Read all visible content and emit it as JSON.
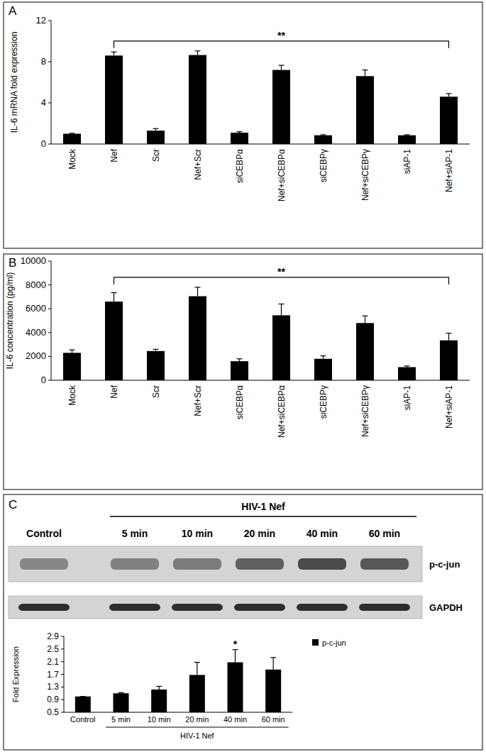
{
  "chart_data": [
    {
      "type": "bar",
      "panel": "A",
      "y_label": "IL-6 mRNA fold expression",
      "categories": [
        "Mock",
        "Nef",
        "Scr",
        "Nef+Scr",
        "siCEBPα",
        "Nef+siCEBPα",
        "siCEBPγ",
        "Nef+siCEBPγ",
        "siAP-1",
        "Nef+siAP-1"
      ],
      "values": [
        1.0,
        8.6,
        1.3,
        8.65,
        1.1,
        7.2,
        0.85,
        6.6,
        0.85,
        4.6
      ],
      "errors": [
        0.05,
        0.35,
        0.2,
        0.4,
        0.1,
        0.45,
        0.05,
        0.6,
        0.05,
        0.3
      ],
      "color": "#000000",
      "ylim": [
        0,
        12
      ],
      "yticks": [
        0,
        4,
        8,
        12
      ],
      "annotations": [
        {
          "text": "**",
          "categories": [
            "Nef",
            "Nef+siAP-1"
          ],
          "position": "above"
        }
      ]
    },
    {
      "type": "bar",
      "panel": "B",
      "y_label": "IL-6 concentration (pg/ml)",
      "categories": [
        "Mock",
        "Nef",
        "Scr",
        "Nef+Scr",
        "siCEBPα",
        "Nef+siCEBPα",
        "siCEBPγ",
        "Nef+siCEBPγ",
        "siAP-1",
        "Nef+siAP-1"
      ],
      "values": [
        2300,
        6600,
        2450,
        7050,
        1600,
        5450,
        1800,
        4800,
        1100,
        3350
      ],
      "errors": [
        250,
        750,
        150,
        750,
        200,
        950,
        250,
        600,
        100,
        600
      ],
      "color": "#000000",
      "ylim": [
        0,
        10000
      ],
      "yticks": [
        0,
        2000,
        4000,
        6000,
        8000,
        10000
      ],
      "annotations": [
        {
          "text": "**",
          "categories": [
            "Nef",
            "Nef+siAP-1"
          ],
          "position": "above"
        }
      ]
    },
    {
      "type": "bar",
      "panel": "C",
      "blot": {
        "header": "HIV-1 Nef",
        "lanes": [
          "Control",
          "5 min",
          "10 min",
          "20 min",
          "40 min",
          "60 min"
        ],
        "rows": [
          "p-c-jun",
          "GAPDH"
        ]
      },
      "y_label": "Fold Expression",
      "categories": [
        "Control",
        "5 min",
        "10 min",
        "20 min",
        "40 min",
        "60 min"
      ],
      "series": [
        {
          "name": "p-c-jun",
          "color": "#000000",
          "values": [
            1.0,
            1.1,
            1.22,
            1.68,
            2.08,
            1.85
          ],
          "errors": [
            0,
            0.02,
            0.1,
            0.4,
            0.4,
            0.38
          ]
        }
      ],
      "ylim": [
        0.5,
        2.9
      ],
      "yticks": [
        0.5,
        0.9,
        1.3,
        1.7,
        2.1,
        2.5,
        2.9
      ],
      "legend": "right",
      "annotations": [
        {
          "text": "*",
          "categories": [
            "40 min"
          ],
          "position": "above"
        },
        {
          "text": "HIV-1 Nef",
          "categories": [
            "5 min",
            "60 min"
          ],
          "position": "below"
        }
      ]
    }
  ]
}
